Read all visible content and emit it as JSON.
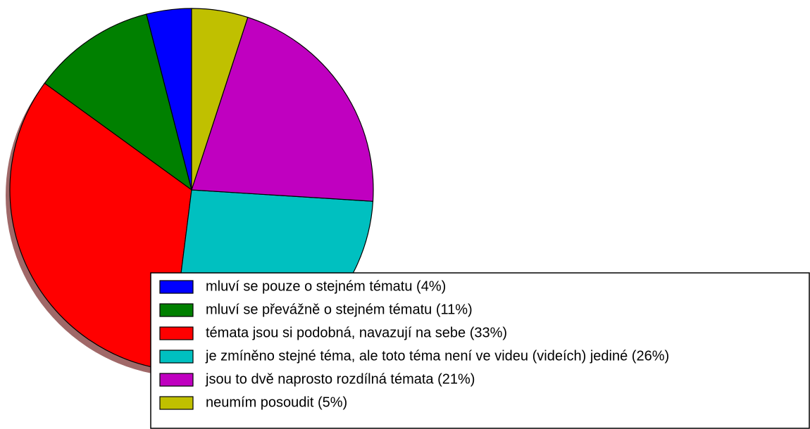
{
  "chart_data": {
    "type": "pie",
    "categories": [
      "mluví se pouze o stejném tématu (4%)",
      "mluví se převážně o stejném tématu (11%)",
      "témata jsou si podobná, navazují na sebe (33%)",
      "je zmíněno stejné téma, ale toto téma není ve videu (videích) jediné (26%)",
      "jsou to dvě naprosto rozdílná témata (21%)",
      "neumím posoudit (5%)"
    ],
    "values": [
      4,
      11,
      33,
      26,
      21,
      5
    ],
    "colors": [
      "#0000ff",
      "#008000",
      "#ff0000",
      "#00c0c0",
      "#c000c0",
      "#c0c000"
    ]
  }
}
